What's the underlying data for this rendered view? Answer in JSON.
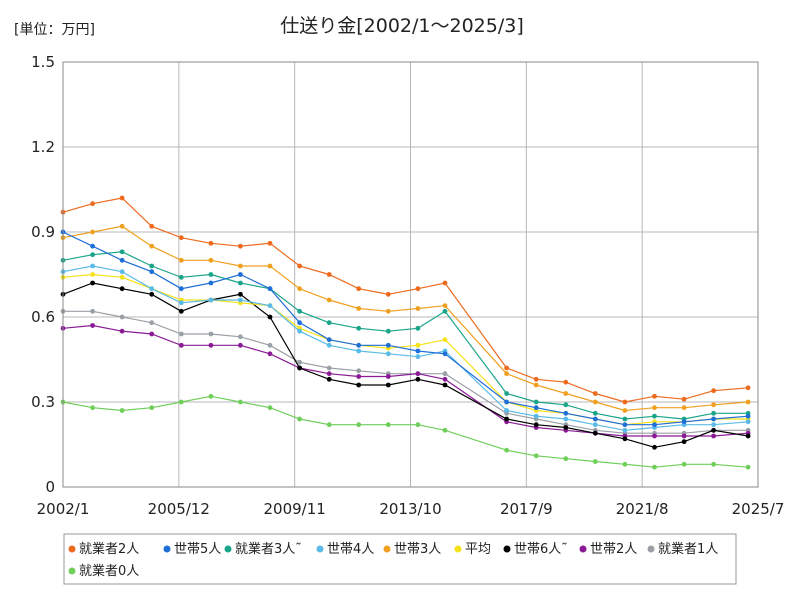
{
  "chart_data": {
    "type": "line",
    "title": "仕送り金[2002/1〜2025/3]",
    "unit_label": "[単位：万円]",
    "xlabel": "",
    "ylabel": "",
    "ylim": [
      0,
      1.5
    ],
    "yticks": [
      "0",
      "0.3",
      "0.6",
      "0.9",
      "1.2",
      "1.5"
    ],
    "xticks": [
      "2002/1",
      "2005/12",
      "2009/11",
      "2013/10",
      "2017/9",
      "2021/8",
      "2025/7"
    ],
    "x_range": [
      "2002/1",
      "2025/7"
    ],
    "grid": true,
    "legend_position": "bottom",
    "gap": [
      "2014/12",
      "2016/12"
    ],
    "series": [
      {
        "name": "就業者2人",
        "color": "#ed6a1f",
        "x": [
          "2002/1",
          "2003/1",
          "2004/1",
          "2005/1",
          "2006/1",
          "2007/1",
          "2008/1",
          "2009/1",
          "2010/1",
          "2011/1",
          "2012/1",
          "2013/1",
          "2014/1",
          "2014/12",
          "2017/1",
          "2018/1",
          "2019/1",
          "2020/1",
          "2021/1",
          "2022/1",
          "2023/1",
          "2024/1",
          "2025/3"
        ],
        "values": [
          0.97,
          1.0,
          1.02,
          0.92,
          0.88,
          0.86,
          0.85,
          0.86,
          0.78,
          0.75,
          0.7,
          0.68,
          0.7,
          0.72,
          0.42,
          0.38,
          0.37,
          0.33,
          0.3,
          0.32,
          0.31,
          0.34,
          0.35
        ]
      },
      {
        "name": "世帯5人",
        "color": "#1f6fd8",
        "x": [
          "2002/1",
          "2003/1",
          "2004/1",
          "2005/1",
          "2006/1",
          "2007/1",
          "2008/1",
          "2009/1",
          "2010/1",
          "2011/1",
          "2012/1",
          "2013/1",
          "2014/1",
          "2014/12",
          "2017/1",
          "2018/1",
          "2019/1",
          "2020/1",
          "2021/1",
          "2022/1",
          "2023/1",
          "2024/1",
          "2025/3"
        ],
        "values": [
          0.9,
          0.85,
          0.8,
          0.76,
          0.7,
          0.72,
          0.75,
          0.7,
          0.58,
          0.52,
          0.5,
          0.5,
          0.48,
          0.47,
          0.3,
          0.28,
          0.26,
          0.24,
          0.22,
          0.22,
          0.23,
          0.24,
          0.25
        ]
      },
      {
        "name": "就業者3人˜",
        "color": "#1aa58a",
        "x": [
          "2002/1",
          "2003/1",
          "2004/1",
          "2005/1",
          "2006/1",
          "2007/1",
          "2008/1",
          "2009/1",
          "2010/1",
          "2011/1",
          "2012/1",
          "2013/1",
          "2014/1",
          "2014/12",
          "2017/1",
          "2018/1",
          "2019/1",
          "2020/1",
          "2021/1",
          "2022/1",
          "2023/1",
          "2024/1",
          "2025/3"
        ],
        "values": [
          0.8,
          0.82,
          0.83,
          0.78,
          0.74,
          0.75,
          0.72,
          0.7,
          0.62,
          0.58,
          0.56,
          0.55,
          0.56,
          0.62,
          0.33,
          0.3,
          0.29,
          0.26,
          0.24,
          0.25,
          0.24,
          0.26,
          0.26
        ]
      },
      {
        "name": "世帯4人",
        "color": "#5bbbe8",
        "x": [
          "2002/1",
          "2003/1",
          "2004/1",
          "2005/1",
          "2006/1",
          "2007/1",
          "2008/1",
          "2009/1",
          "2010/1",
          "2011/1",
          "2012/1",
          "2013/1",
          "2014/1",
          "2014/12",
          "2017/1",
          "2018/1",
          "2019/1",
          "2020/1",
          "2021/1",
          "2022/1",
          "2023/1",
          "2024/1",
          "2025/3"
        ],
        "values": [
          0.76,
          0.78,
          0.76,
          0.7,
          0.65,
          0.66,
          0.66,
          0.64,
          0.55,
          0.5,
          0.48,
          0.47,
          0.46,
          0.48,
          0.27,
          0.25,
          0.24,
          0.22,
          0.2,
          0.21,
          0.22,
          0.22,
          0.23
        ]
      },
      {
        "name": "世帯3人",
        "color": "#f0a020",
        "x": [
          "2002/1",
          "2003/1",
          "2004/1",
          "2005/1",
          "2006/1",
          "2007/1",
          "2008/1",
          "2009/1",
          "2010/1",
          "2011/1",
          "2012/1",
          "2013/1",
          "2014/1",
          "2014/12",
          "2017/1",
          "2018/1",
          "2019/1",
          "2020/1",
          "2021/1",
          "2022/1",
          "2023/1",
          "2024/1",
          "2025/3"
        ],
        "values": [
          0.88,
          0.9,
          0.92,
          0.85,
          0.8,
          0.8,
          0.78,
          0.78,
          0.7,
          0.66,
          0.63,
          0.62,
          0.63,
          0.64,
          0.4,
          0.36,
          0.33,
          0.3,
          0.27,
          0.28,
          0.28,
          0.29,
          0.3
        ]
      },
      {
        "name": "平均",
        "color": "#f5e21a",
        "x": [
          "2002/1",
          "2003/1",
          "2004/1",
          "2005/1",
          "2006/1",
          "2007/1",
          "2008/1",
          "2009/1",
          "2010/1",
          "2011/1",
          "2012/1",
          "2013/1",
          "2014/1",
          "2014/12",
          "2017/1",
          "2018/1",
          "2019/1",
          "2020/1",
          "2021/1",
          "2022/1",
          "2023/1",
          "2024/1",
          "2025/3"
        ],
        "values": [
          0.74,
          0.75,
          0.74,
          0.7,
          0.66,
          0.66,
          0.65,
          0.64,
          0.56,
          0.52,
          0.5,
          0.49,
          0.5,
          0.52,
          0.3,
          0.27,
          0.26,
          0.24,
          0.22,
          0.23,
          0.23,
          0.24,
          0.24
        ]
      },
      {
        "name": "世帯6人˜",
        "color": "#000000",
        "x": [
          "2002/1",
          "2003/1",
          "2004/1",
          "2005/1",
          "2006/1",
          "2007/1",
          "2008/1",
          "2009/1",
          "2010/1",
          "2011/1",
          "2012/1",
          "2013/1",
          "2014/1",
          "2014/12",
          "2017/1",
          "2018/1",
          "2019/1",
          "2020/1",
          "2021/1",
          "2022/1",
          "2023/1",
          "2024/1",
          "2025/3"
        ],
        "values": [
          0.68,
          0.72,
          0.7,
          0.68,
          0.62,
          0.66,
          0.68,
          0.6,
          0.42,
          0.38,
          0.36,
          0.36,
          0.38,
          0.36,
          0.24,
          0.22,
          0.21,
          0.19,
          0.17,
          0.14,
          0.16,
          0.2,
          0.18
        ]
      },
      {
        "name": "世帯2人",
        "color": "#8a1a96",
        "x": [
          "2002/1",
          "2003/1",
          "2004/1",
          "2005/1",
          "2006/1",
          "2007/1",
          "2008/1",
          "2009/1",
          "2010/1",
          "2011/1",
          "2012/1",
          "2013/1",
          "2014/1",
          "2014/12",
          "2017/1",
          "2018/1",
          "2019/1",
          "2020/1",
          "2021/1",
          "2022/1",
          "2023/1",
          "2024/1",
          "2025/3"
        ],
        "values": [
          0.56,
          0.57,
          0.55,
          0.54,
          0.5,
          0.5,
          0.5,
          0.47,
          0.42,
          0.4,
          0.39,
          0.39,
          0.4,
          0.38,
          0.23,
          0.21,
          0.2,
          0.19,
          0.18,
          0.18,
          0.18,
          0.18,
          0.19
        ]
      },
      {
        "name": "就業者1人",
        "color": "#9aa0a6",
        "x": [
          "2002/1",
          "2003/1",
          "2004/1",
          "2005/1",
          "2006/1",
          "2007/1",
          "2008/1",
          "2009/1",
          "2010/1",
          "2011/1",
          "2012/1",
          "2013/1",
          "2014/1",
          "2014/12",
          "2017/1",
          "2018/1",
          "2019/1",
          "2020/1",
          "2021/1",
          "2022/1",
          "2023/1",
          "2024/1",
          "2025/3"
        ],
        "values": [
          0.62,
          0.62,
          0.6,
          0.58,
          0.54,
          0.54,
          0.53,
          0.5,
          0.44,
          0.42,
          0.41,
          0.4,
          0.4,
          0.4,
          0.26,
          0.24,
          0.22,
          0.2,
          0.19,
          0.19,
          0.19,
          0.2,
          0.2
        ]
      },
      {
        "name": "就業者0人",
        "color": "#6fcf5a",
        "x": [
          "2002/1",
          "2003/1",
          "2004/1",
          "2005/1",
          "2006/1",
          "2007/1",
          "2008/1",
          "2009/1",
          "2010/1",
          "2011/1",
          "2012/1",
          "2013/1",
          "2014/1",
          "2014/12",
          "2017/1",
          "2018/1",
          "2019/1",
          "2020/1",
          "2021/1",
          "2022/1",
          "2023/1",
          "2024/1",
          "2025/3"
        ],
        "values": [
          0.3,
          0.28,
          0.27,
          0.28,
          0.3,
          0.32,
          0.3,
          0.28,
          0.24,
          0.22,
          0.22,
          0.22,
          0.22,
          0.2,
          0.13,
          0.11,
          0.1,
          0.09,
          0.08,
          0.07,
          0.08,
          0.08,
          0.07
        ]
      }
    ]
  }
}
